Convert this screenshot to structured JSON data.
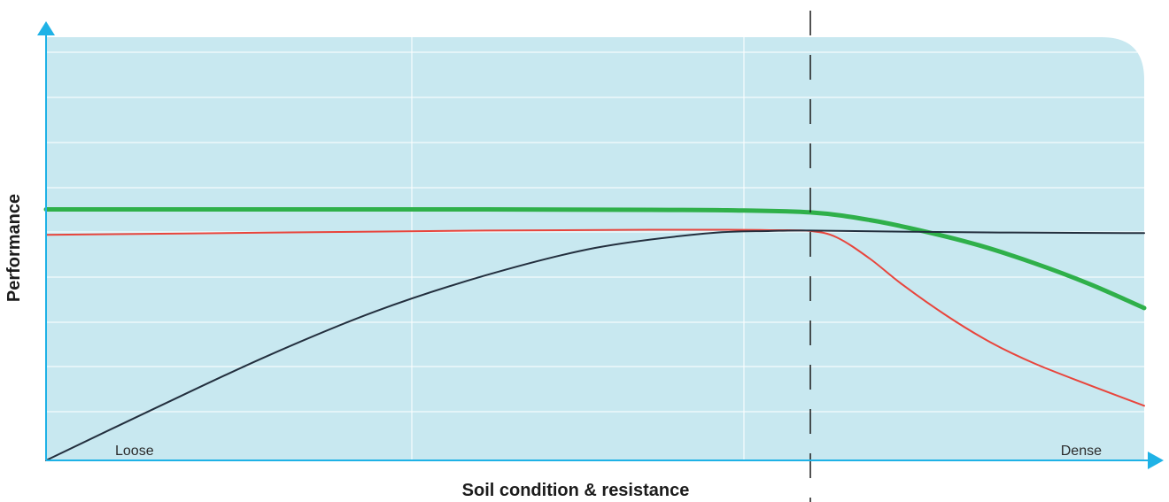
{
  "chart_data": {
    "type": "line",
    "title": "",
    "xlabel": "Soil condition & resistance",
    "ylabel": "Performance",
    "xlim": [
      0,
      100
    ],
    "ylim": [
      0,
      100
    ],
    "grid": true,
    "region_labels": {
      "left": "Loose",
      "right": "Dense"
    },
    "threshold_x": 69.6,
    "colors": {
      "plot_background": "#c8e8f0",
      "grid": "#ffffff",
      "axis": "#1fb2e6",
      "threshold": "#1c1c1c"
    },
    "series": [
      {
        "color": "#2fb04a",
        "x": [
          0,
          20,
          40,
          55,
          62,
          69.6,
          75,
          80,
          85,
          90,
          95,
          100
        ],
        "y": [
          59.3,
          59.3,
          59.3,
          59.2,
          59.1,
          58.6,
          56.8,
          54.1,
          50.8,
          46.6,
          41.7,
          36.0
        ]
      },
      {
        "color": "#e8453c",
        "x": [
          0,
          20,
          40,
          55,
          62,
          66,
          69.6,
          72,
          75,
          78,
          82,
          86,
          90,
          95,
          100
        ],
        "y": [
          53.3,
          53.8,
          54.3,
          54.5,
          54.5,
          54.4,
          54.2,
          52.7,
          47.7,
          41.5,
          34.2,
          27.9,
          22.9,
          17.8,
          12.9
        ]
      },
      {
        "color": "#232f3e",
        "x": [
          0,
          10,
          20,
          30,
          40,
          50,
          60,
          66,
          69.6,
          80,
          90,
          100
        ],
        "y": [
          0,
          12.4,
          24.5,
          35.2,
          43.7,
          50.2,
          53.6,
          54.2,
          54.3,
          54.0,
          53.8,
          53.7
        ]
      }
    ]
  }
}
